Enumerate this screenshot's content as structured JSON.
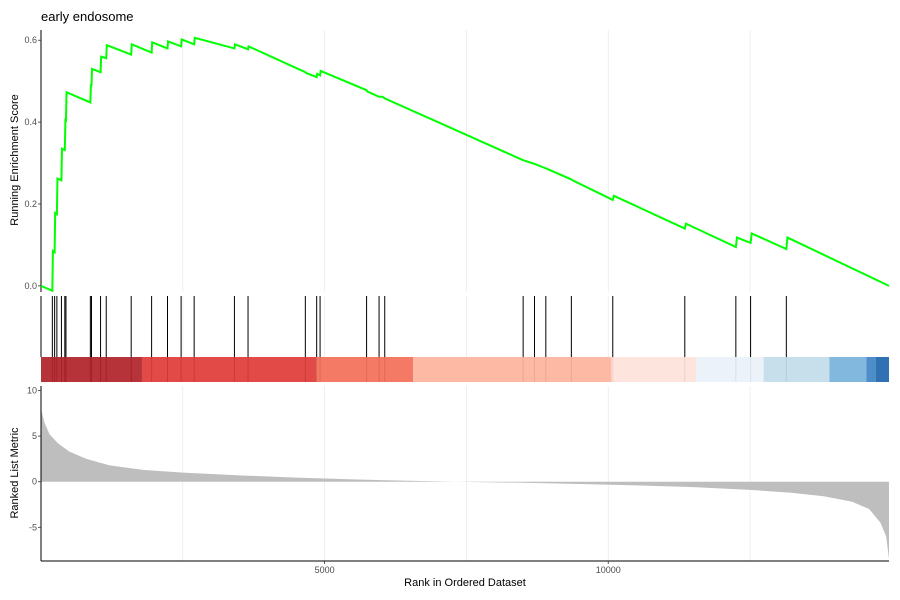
{
  "chart_data": {
    "type": "line",
    "title": "early endosome",
    "ylabel": "Running Enrichment Score",
    "xlabel": "Rank in Ordered Dataset",
    "xlim": [
      0,
      14950
    ],
    "ylim": [
      -0.015,
      0.625
    ],
    "xticks": [
      5000,
      10000
    ],
    "xtick_labels": [
      "5000",
      "10000"
    ],
    "yticks": [
      0.0,
      0.2,
      0.4,
      0.6
    ],
    "ytick_labels": [
      "0.0",
      "0.2",
      "0.4",
      "0.6"
    ],
    "gridlines_x": [
      2500,
      5000,
      7500,
      10000,
      12500
    ],
    "grid": true,
    "line_color": "#00ff00",
    "series": [
      {
        "values": [
          [
            0,
            0.0
          ],
          [
            200,
            -0.012
          ],
          [
            210,
            0.085
          ],
          [
            240,
            0.082
          ],
          [
            250,
            0.178
          ],
          [
            280,
            0.175
          ],
          [
            290,
            0.262
          ],
          [
            360,
            0.258
          ],
          [
            370,
            0.335
          ],
          [
            420,
            0.332
          ],
          [
            430,
            0.405
          ],
          [
            440,
            0.404
          ],
          [
            450,
            0.473
          ],
          [
            870,
            0.448
          ],
          [
            880,
            0.49
          ],
          [
            890,
            0.49
          ],
          [
            900,
            0.53
          ],
          [
            1050,
            0.522
          ],
          [
            1060,
            0.56
          ],
          [
            1150,
            0.556
          ],
          [
            1160,
            0.588
          ],
          [
            1590,
            0.565
          ],
          [
            1600,
            0.59
          ],
          [
            1950,
            0.57
          ],
          [
            1960,
            0.595
          ],
          [
            2230,
            0.58
          ],
          [
            2240,
            0.597
          ],
          [
            2470,
            0.585
          ],
          [
            2480,
            0.602
          ],
          [
            2700,
            0.59
          ],
          [
            2710,
            0.606
          ],
          [
            3410,
            0.58
          ],
          [
            3420,
            0.59
          ],
          [
            3650,
            0.578
          ],
          [
            3660,
            0.585
          ],
          [
            4660,
            0.522
          ],
          [
            4670,
            0.52
          ],
          [
            4860,
            0.51
          ],
          [
            4870,
            0.518
          ],
          [
            4920,
            0.514
          ],
          [
            4930,
            0.525
          ],
          [
            5740,
            0.478
          ],
          [
            5750,
            0.475
          ],
          [
            5960,
            0.462
          ],
          [
            6020,
            0.462
          ],
          [
            6060,
            0.458
          ],
          [
            8500,
            0.307
          ],
          [
            8520,
            0.306
          ],
          [
            8700,
            0.298
          ],
          [
            8720,
            0.297
          ],
          [
            8900,
            0.287
          ],
          [
            8920,
            0.286
          ],
          [
            9350,
            0.26
          ],
          [
            9370,
            0.258
          ],
          [
            10080,
            0.21
          ],
          [
            10100,
            0.22
          ],
          [
            11350,
            0.14
          ],
          [
            11370,
            0.152
          ],
          [
            12250,
            0.095
          ],
          [
            12270,
            0.118
          ],
          [
            12510,
            0.105
          ],
          [
            12530,
            0.128
          ],
          [
            13140,
            0.09
          ],
          [
            13160,
            0.118
          ],
          [
            14950,
            0.0
          ]
        ]
      }
    ],
    "hits": [
      200,
      240,
      280,
      360,
      420,
      440,
      870,
      890,
      1050,
      1150,
      1590,
      1950,
      2230,
      2470,
      2700,
      3410,
      3650,
      4660,
      4860,
      4920,
      5740,
      5960,
      6060,
      8500,
      8700,
      8900,
      9350,
      10080,
      11350,
      12250,
      12510,
      13140
    ],
    "color_bands": [
      {
        "from": 0,
        "to": 1780,
        "color": "#b2242b"
      },
      {
        "from": 1780,
        "to": 4850,
        "color": "#e03c3a"
      },
      {
        "from": 4850,
        "to": 6560,
        "color": "#f4705a"
      },
      {
        "from": 6560,
        "to": 10060,
        "color": "#fdb49c"
      },
      {
        "from": 10060,
        "to": 11550,
        "color": "#fde3da"
      },
      {
        "from": 11550,
        "to": 12740,
        "color": "#eaf1fa"
      },
      {
        "from": 12740,
        "to": 13900,
        "color": "#c3dbea"
      },
      {
        "from": 13900,
        "to": 14550,
        "color": "#78b3dc"
      },
      {
        "from": 14550,
        "to": 14720,
        "color": "#3f85c4"
      },
      {
        "from": 14720,
        "to": 14950,
        "color": "#1f66ad"
      }
    ],
    "ranked_metric": {
      "ylabel": "Ranked List Metric",
      "ylim": [
        -8.7,
        10.5
      ],
      "yticks": [
        -5,
        0,
        5,
        10
      ],
      "ytick_labels": [
        "-5",
        "0",
        "5",
        "10"
      ],
      "fill_color": "#bebebe",
      "values": [
        [
          0,
          8.0
        ],
        [
          20,
          7.5
        ],
        [
          60,
          6.5
        ],
        [
          150,
          5.2
        ],
        [
          300,
          4.2
        ],
        [
          500,
          3.3
        ],
        [
          800,
          2.5
        ],
        [
          1200,
          1.8
        ],
        [
          1800,
          1.3
        ],
        [
          2500,
          1.0
        ],
        [
          3500,
          0.7
        ],
        [
          4500,
          0.45
        ],
        [
          5500,
          0.25
        ],
        [
          6500,
          0.1
        ],
        [
          7300,
          0.0
        ],
        [
          8500,
          -0.12
        ],
        [
          9500,
          -0.25
        ],
        [
          10500,
          -0.4
        ],
        [
          11500,
          -0.6
        ],
        [
          12500,
          -0.9
        ],
        [
          13200,
          -1.2
        ],
        [
          13800,
          -1.6
        ],
        [
          14300,
          -2.2
        ],
        [
          14600,
          -3.0
        ],
        [
          14800,
          -4.5
        ],
        [
          14900,
          -6.0
        ],
        [
          14950,
          -8.5
        ]
      ]
    }
  }
}
